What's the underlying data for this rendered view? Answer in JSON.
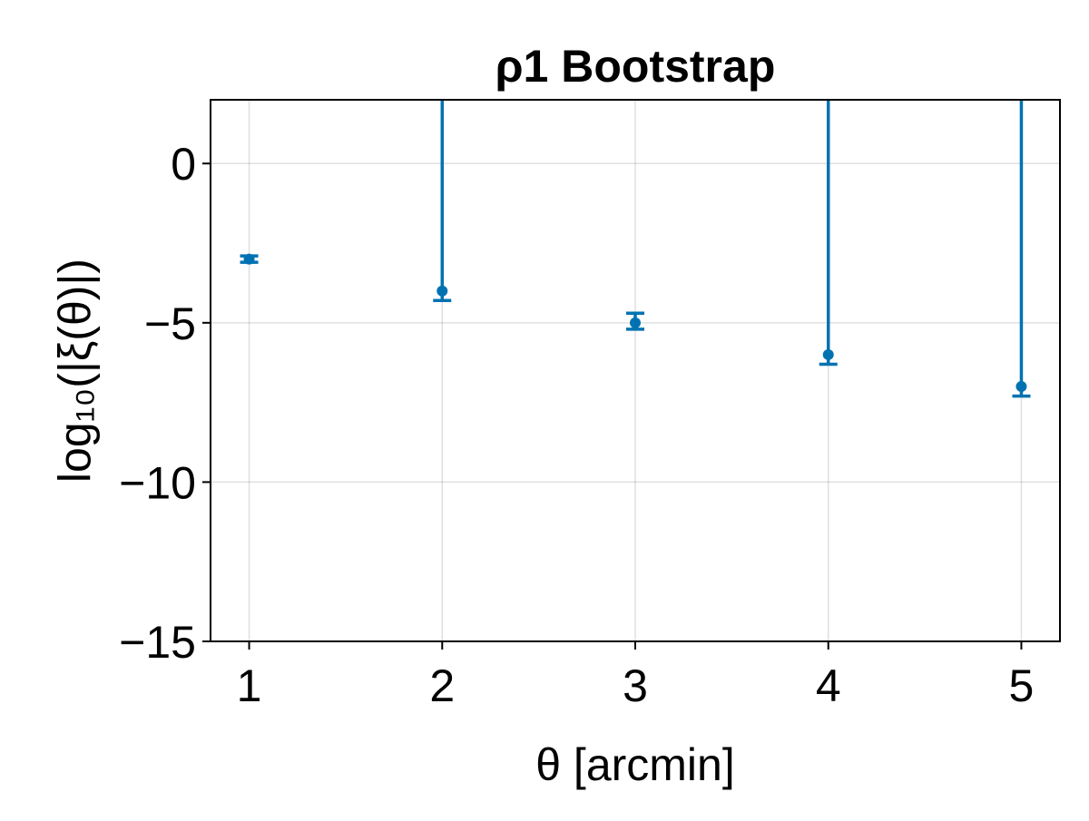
{
  "chart_data": {
    "type": "scatter",
    "title": "ρ1 Bootstrap",
    "xlabel": "θ [arcmin]",
    "ylabel": "log₁₀(|ξ(θ)|)",
    "xlim": [
      0.8,
      5.2
    ],
    "ylim": [
      -15,
      2
    ],
    "x_ticks": [
      1,
      2,
      3,
      4,
      5
    ],
    "x_tick_labels": [
      "1",
      "2",
      "3",
      "4",
      "5"
    ],
    "y_ticks": [
      0,
      -5,
      -10,
      -15
    ],
    "y_tick_labels": [
      "0",
      "−5",
      "−10",
      "−15"
    ],
    "grid": true,
    "legend": "none",
    "series": [
      {
        "color": "#0072b2",
        "points": [
          {
            "x": 1,
            "y": -3.0,
            "err_low": -3.1,
            "err_high": -2.9
          },
          {
            "x": 2,
            "y": -4.0,
            "err_low": -4.3,
            "err_high": 2
          },
          {
            "x": 3,
            "y": -5.0,
            "err_low": -5.2,
            "err_high": -4.7
          },
          {
            "x": 4,
            "y": -6.0,
            "err_low": -6.3,
            "err_high": 2
          },
          {
            "x": 5,
            "y": -7.0,
            "err_low": -7.3,
            "err_high": 2
          }
        ]
      }
    ]
  }
}
